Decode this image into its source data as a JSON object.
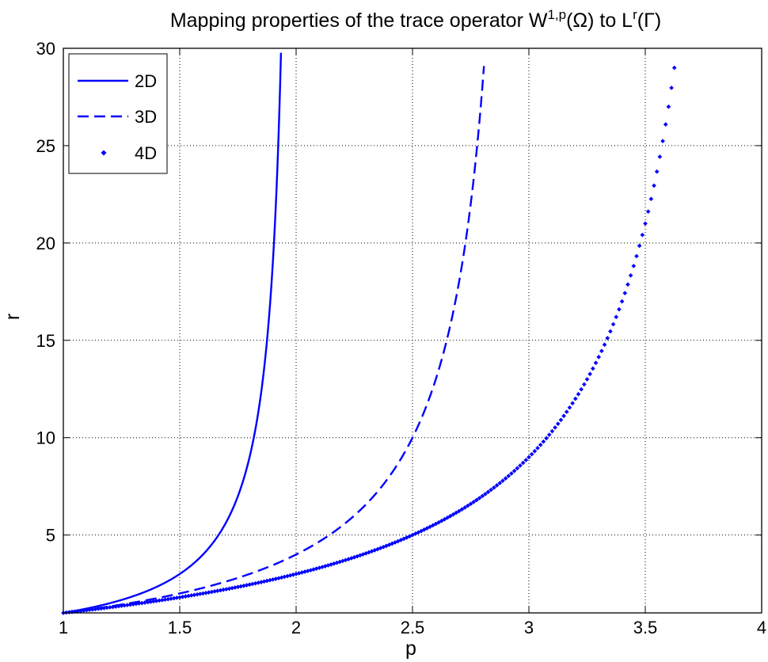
{
  "chart_data": {
    "type": "line",
    "title": {
      "prefix": "Mapping properties of the trace operator W",
      "sup1": "1,p",
      "mid": "(Ω) to L",
      "sup2": "r",
      "suffix": "(Γ)"
    },
    "xlabel": "p",
    "ylabel": "r",
    "xlim": [
      1,
      4
    ],
    "ylim": [
      1,
      30
    ],
    "xticks": [
      1,
      1.5,
      2,
      2.5,
      3,
      3.5,
      4
    ],
    "xtick_labels": [
      "1",
      "1.5",
      "2",
      "2.5",
      "3",
      "3.5",
      "4"
    ],
    "yticks": [
      5,
      10,
      15,
      20,
      25,
      30
    ],
    "ytick_labels": [
      "5",
      "10",
      "15",
      "20",
      "25",
      "30"
    ],
    "grid": true,
    "grid_style": "dotted",
    "legend_position": "top-left",
    "color": "#0000ff",
    "series": [
      {
        "name": "2D",
        "style": "solid",
        "formula": "r = p/(2-p)",
        "p_range": [
          1,
          1.935
        ]
      },
      {
        "name": "3D",
        "style": "dashed",
        "formula": "r = 2p/(3-p)",
        "p_range": [
          1,
          2.807
        ]
      },
      {
        "name": "4D",
        "style": "dotted-markers",
        "formula": "r = 3p/(4-p)",
        "p_range": [
          1,
          3.625
        ],
        "p_step": 0.0125
      }
    ]
  }
}
